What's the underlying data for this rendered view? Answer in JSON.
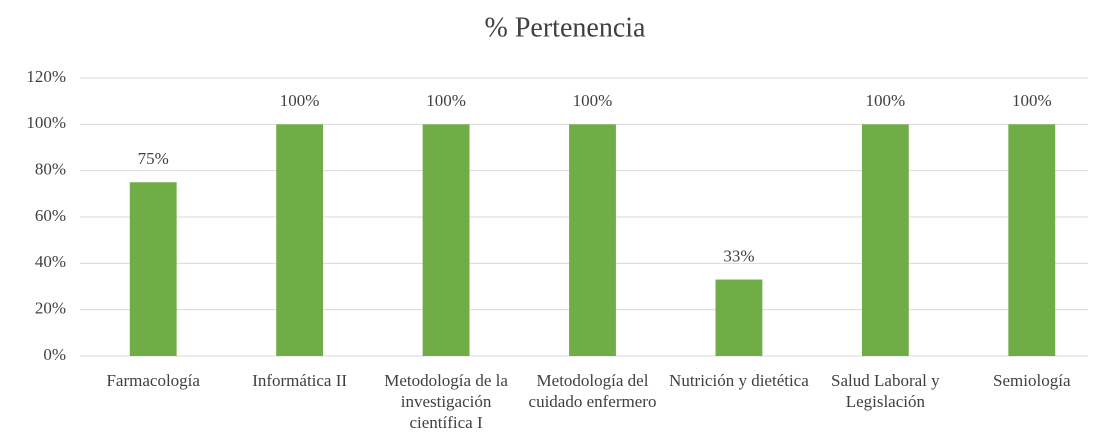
{
  "chart_data": {
    "type": "bar",
    "title": "% Pertenencia",
    "categories": [
      "Farmacología",
      "Informática II",
      "Metodología de la investigación científica I",
      "Metodología del cuidado enfermero",
      "Nutrición y dietética",
      "Salud Laboral y Legislación",
      "Semiología"
    ],
    "values": [
      75,
      100,
      100,
      100,
      33,
      100,
      100
    ],
    "value_labels": [
      "75%",
      "100%",
      "100%",
      "100%",
      "33%",
      "100%",
      "100%"
    ],
    "color": "#70ad47",
    "ylim": [
      0,
      120
    ],
    "yticks": [
      {
        "value": 0,
        "label": "0%"
      },
      {
        "value": 20,
        "label": "20%"
      },
      {
        "value": 40,
        "label": "40%"
      },
      {
        "value": 60,
        "label": "60%"
      },
      {
        "value": 80,
        "label": "80%"
      },
      {
        "value": 100,
        "label": "100%"
      },
      {
        "value": 120,
        "label": "120%"
      }
    ],
    "grid": true
  }
}
